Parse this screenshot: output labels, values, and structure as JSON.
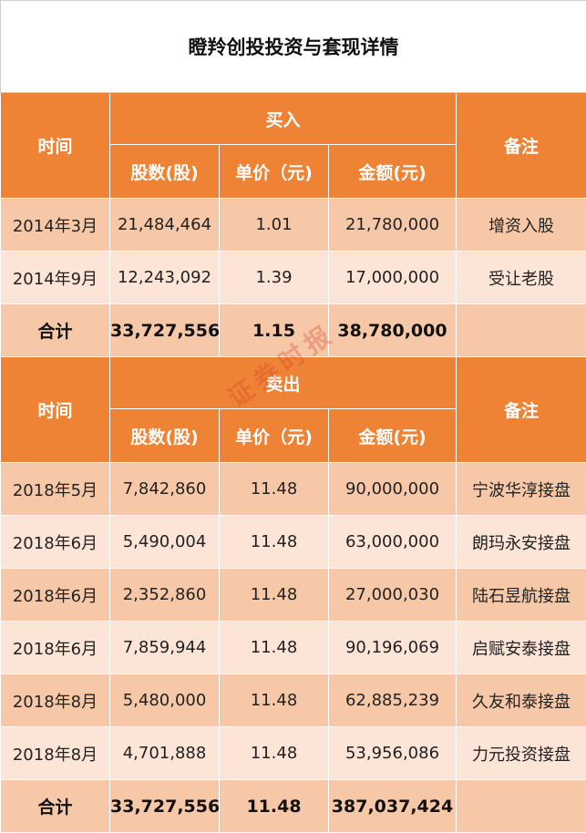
{
  "title": "瞪羚创投投资与套现详情",
  "buy": {
    "header": {
      "time": "时间",
      "group": "买入",
      "shares": "股数(股)",
      "price": "单价（元)",
      "amount": "金额(元)",
      "note": "备注"
    },
    "rows": [
      {
        "time": "2014年3月",
        "shares": "21,484,464",
        "price": "1.01",
        "amount": "21,780,000",
        "note": "增资入股"
      },
      {
        "time": "2014年9月",
        "shares": "12,243,092",
        "price": "1.39",
        "amount": "17,000,000",
        "note": "受让老股"
      }
    ],
    "total": {
      "label": "合计",
      "shares": "33,727,556",
      "price": "1.15",
      "amount": "38,780,000",
      "note": ""
    }
  },
  "sell": {
    "header": {
      "time": "时间",
      "group": "卖出",
      "shares": "股数(股)",
      "price": "单价（元)",
      "amount": "金额(元)",
      "note": "备注"
    },
    "rows": [
      {
        "time": "2018年5月",
        "shares": "7,842,860",
        "price": "11.48",
        "amount": "90,000,000",
        "note": "宁波华淳接盘"
      },
      {
        "time": "2018年6月",
        "shares": "5,490,004",
        "price": "11.48",
        "amount": "63,000,000",
        "note": "朗玛永安接盘"
      },
      {
        "time": "2018年6月",
        "shares": "2,352,860",
        "price": "11.48",
        "amount": "27,000,030",
        "note": "陆石昱航接盘"
      },
      {
        "time": "2018年6月",
        "shares": "7,859,944",
        "price": "11.48",
        "amount": "90,196,069",
        "note": "启赋安泰接盘"
      },
      {
        "time": "2018年8月",
        "shares": "5,480,000",
        "price": "11.48",
        "amount": "62,885,239",
        "note": "久友和泰接盘"
      },
      {
        "time": "2018年8月",
        "shares": "4,701,888",
        "price": "11.48",
        "amount": "53,956,086",
        "note": "力元投资接盘"
      }
    ],
    "total": {
      "label": "合计",
      "shares": "33,727,556",
      "price": "11.48",
      "amount": "387,037,424",
      "note": ""
    }
  },
  "watermark": "证券时报",
  "colors": {
    "header": "#ee8335",
    "row_dark": "#f7c8a7",
    "row_light": "#fce4d6"
  }
}
